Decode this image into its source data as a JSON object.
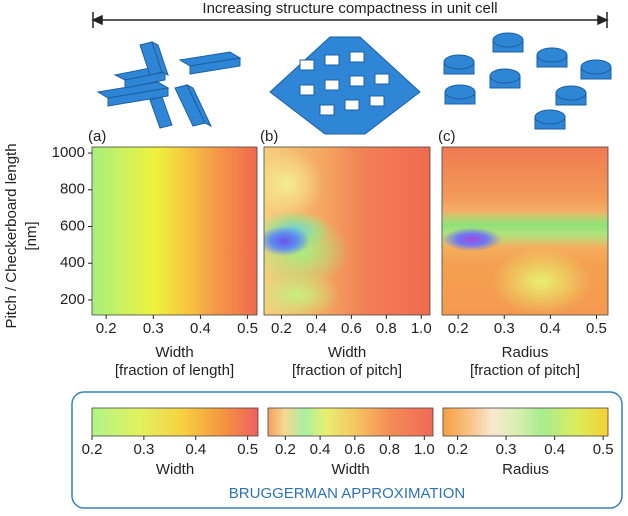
{
  "header": {
    "title": "Increasing structure compactness in unit cell"
  },
  "chart_data": [
    {
      "type": "heatmap",
      "panel": "(a)",
      "ylabel": [
        "Pitch / Checkerboard length",
        "[nm]"
      ],
      "xlabel": [
        "Width",
        "[fraction of length]"
      ],
      "xlim": [
        0.17,
        0.52
      ],
      "xticks": [
        0.2,
        0.3,
        0.4,
        0.5
      ],
      "ylim": [
        118,
        1033
      ],
      "yticks": [
        200,
        400,
        600,
        800,
        1000
      ]
    },
    {
      "type": "heatmap",
      "panel": "(b)",
      "xlabel": [
        "Width",
        "[fraction of pitch]"
      ],
      "xlim": [
        0.1,
        1.05
      ],
      "xticks": [
        0.2,
        0.4,
        0.6,
        0.8,
        {
          "value": 1,
          "label": "1.0"
        }
      ],
      "ylim": [
        118,
        1033
      ]
    },
    {
      "type": "heatmap",
      "panel": "(c)",
      "xlabel": [
        "Radius",
        "[fraction of pitch]"
      ],
      "xlim": [
        0.165,
        0.525
      ],
      "xticks": [
        0.2,
        0.3,
        0.4,
        0.5
      ],
      "ylim": [
        118,
        1033
      ]
    }
  ],
  "colorbars": [
    {
      "label": "Width",
      "xlim": [
        0.2,
        0.52
      ],
      "xticks": [
        0.2,
        0.3,
        0.4,
        0.5
      ]
    },
    {
      "label": "Width",
      "xlim": [
        0.1,
        1.05
      ],
      "xticks": [
        0.2,
        0.4,
        0.6,
        0.8,
        {
          "value": 1,
          "label": "1.0"
        }
      ]
    },
    {
      "label": "Radius",
      "xlim": [
        0.17,
        0.51
      ],
      "xticks": [
        0.2,
        0.3,
        0.4,
        0.5
      ]
    }
  ],
  "legend_box": {
    "title": "BRUGGERMAN APPROXIMATION"
  }
}
